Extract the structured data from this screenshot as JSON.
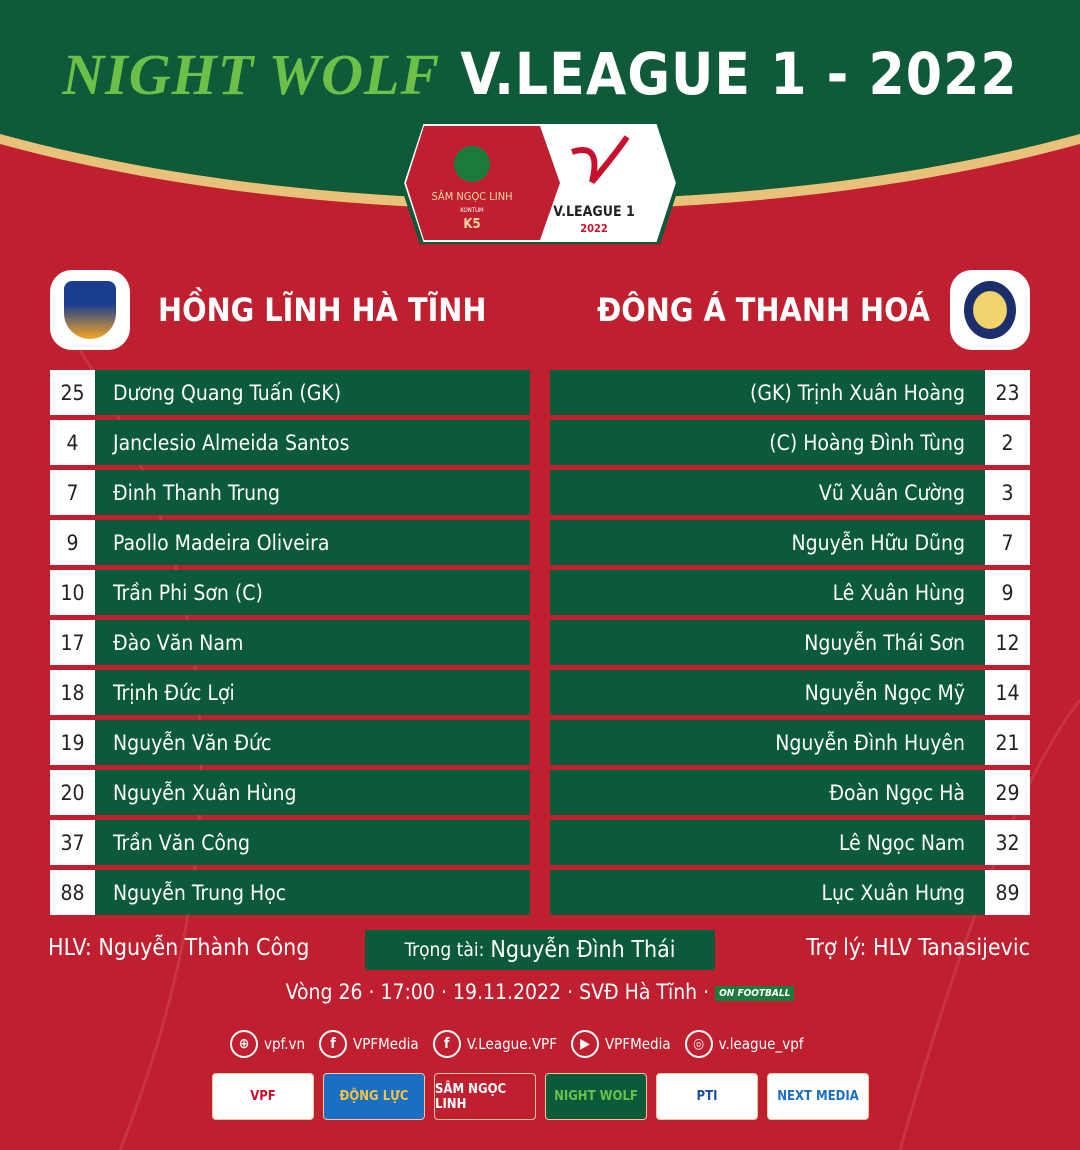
{
  "header": {
    "sponsor_title": "NIGHT WOLF",
    "title": "V.LEAGUE 1 - 2022",
    "badge": {
      "sponsor": "SÂM NGỌC LINH",
      "sponsor_sub": "KONTUM",
      "sponsor_mark": "K5",
      "league": "V.LEAGUE 1",
      "year": "2022"
    }
  },
  "home": {
    "name": "HỒNG LĨNH HÀ TĨNH",
    "players": [
      {
        "number": "25",
        "name": "Dương Quang Tuấn (GK)"
      },
      {
        "number": "4",
        "name": "Janclesio Almeida Santos"
      },
      {
        "number": "7",
        "name": "Đinh Thanh Trung"
      },
      {
        "number": "9",
        "name": "Paollo Madeira Oliveira"
      },
      {
        "number": "10",
        "name": "Trần Phi Sơn (C)"
      },
      {
        "number": "17",
        "name": "Đào Văn Nam"
      },
      {
        "number": "18",
        "name": "Trịnh Đức Lợi"
      },
      {
        "number": "19",
        "name": "Nguyễn Văn Đức"
      },
      {
        "number": "20",
        "name": "Nguyễn Xuân Hùng"
      },
      {
        "number": "37",
        "name": "Trần Văn Công"
      },
      {
        "number": "88",
        "name": "Nguyễn Trung Học"
      }
    ]
  },
  "away": {
    "name": "ĐÔNG Á THANH HOÁ",
    "players": [
      {
        "number": "23",
        "name": "(GK)  Trịnh Xuân Hoàng"
      },
      {
        "number": "2",
        "name": "(C)  Hoàng Đình Tùng"
      },
      {
        "number": "3",
        "name": "Vũ Xuân Cường"
      },
      {
        "number": "7",
        "name": "Nguyễn Hữu Dũng"
      },
      {
        "number": "9",
        "name": "Lê Xuân Hùng"
      },
      {
        "number": "12",
        "name": "Nguyễn Thái Sơn"
      },
      {
        "number": "14",
        "name": "Nguyễn Ngọc Mỹ"
      },
      {
        "number": "21",
        "name": "Nguyễn Đình Huyên"
      },
      {
        "number": "29",
        "name": "Đoàn Ngọc Hà"
      },
      {
        "number": "32",
        "name": "Lê Ngọc Nam"
      },
      {
        "number": "89",
        "name": "Lục Xuân Hưng"
      }
    ]
  },
  "staff": {
    "home_coach": "HLV: Nguyễn Thành Công",
    "referee_label": "Trọng tài:",
    "referee": "Nguyễn Đình Thái",
    "away_coach": "Trợ lý: HLV Tanasijevic"
  },
  "match": {
    "info": "Vòng 26  ·  17:00  ·  19.11.2022  ·  SVĐ Hà Tĩnh  ·",
    "broadcaster": "ON FOOTBALL"
  },
  "socials": [
    {
      "icon": "globe-icon",
      "glyph": "⊕",
      "label": "vpf.vn"
    },
    {
      "icon": "facebook-icon",
      "glyph": "f",
      "label": "VPFMedia"
    },
    {
      "icon": "facebook-icon",
      "glyph": "f",
      "label": "V.League.VPF"
    },
    {
      "icon": "youtube-icon",
      "glyph": "▶",
      "label": "VPFMedia"
    },
    {
      "icon": "instagram-icon",
      "glyph": "◎",
      "label": "v.league_vpf"
    }
  ],
  "sponsors": [
    {
      "label": "VPF",
      "bg": "#ffffff",
      "fg": "#c8102e"
    },
    {
      "label": "ĐỘNG LỰC",
      "bg": "#1a6fc4",
      "fg": "#f5c542"
    },
    {
      "label": "SÂM NGỌC LINH",
      "bg": "#bf1f2e",
      "fg": "#ffffff"
    },
    {
      "label": "NIGHT WOLF",
      "bg": "#0b5a3a",
      "fg": "#6cc04a"
    },
    {
      "label": "PTI",
      "bg": "#ffffff",
      "fg": "#1a4fa0"
    },
    {
      "label": "NEXT MEDIA",
      "bg": "#ffffff",
      "fg": "#1a6fc4"
    }
  ],
  "colors": {
    "red": "#bf1f2e",
    "green": "#0b5a3a",
    "gold": "#e8c27a"
  }
}
